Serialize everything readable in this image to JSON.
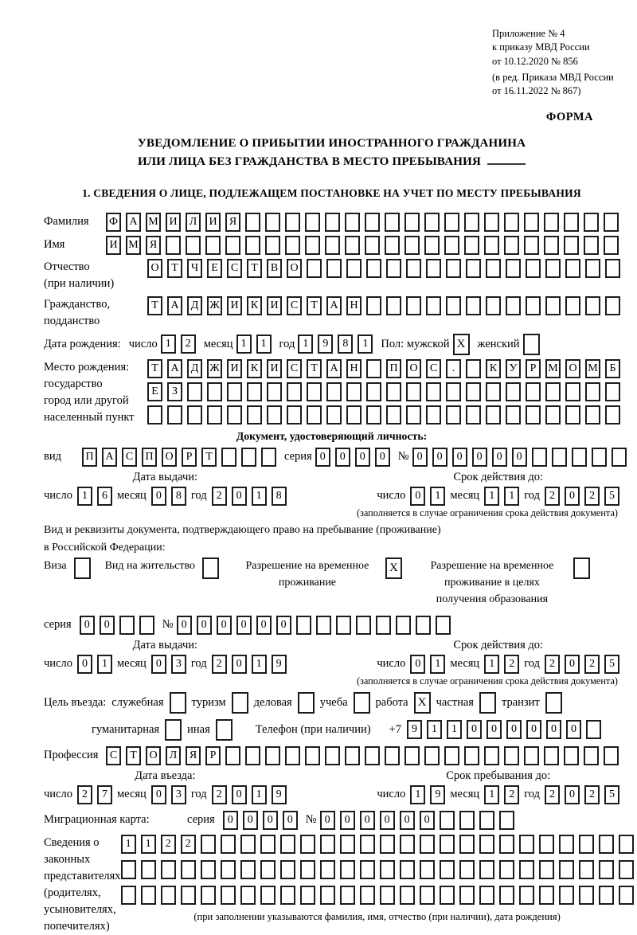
{
  "header": {
    "line1": "Приложение № 4",
    "line2": "к приказу МВД России",
    "line3": "от 10.12.2020 № 856",
    "line4": "(в ред. Приказа МВД России",
    "line5": "от 16.11.2022 № 867)",
    "forma": "ФОРМА"
  },
  "title": {
    "line1": "УВЕДОМЛЕНИЕ О ПРИБЫТИИ ИНОСТРАННОГО ГРАЖДАНИНА",
    "line2": "ИЛИ ЛИЦА БЕЗ ГРАЖДАНСТВА В МЕСТО ПРЕБЫВАНИЯ"
  },
  "section1_heading": "1. СВЕДЕНИЯ О ЛИЦЕ, ПОДЛЕЖАЩЕМ ПОСТАНОВКЕ НА УЧЕТ ПО МЕСТУ ПРЕБЫВАНИЯ",
  "labels": {
    "day": "число",
    "month": "месяц",
    "year": "год",
    "series": "серия",
    "number": "№",
    "issue_date": "Дата выдачи:",
    "valid_until": "Срок действия до:",
    "validity_note": "(заполняется в случае ограничения срока действия документа)",
    "entry_date": "Дата въезда:",
    "stay_until": "Срок пребывания до:"
  },
  "fields": {
    "surname": {
      "label": "Фамилия",
      "cells": {
        "value": "ФАМИЛИЯ",
        "len": 26
      }
    },
    "name": {
      "label": "Имя",
      "cells": {
        "value": "ИМЯ",
        "len": 26
      }
    },
    "patronymic": {
      "label": "Отчество",
      "label2": "(при наличии)",
      "cells": {
        "value": "ОТЧЕСТВО",
        "len": 24
      }
    },
    "citizenship": {
      "label": "Гражданство,",
      "label2": "подданство",
      "cells": {
        "value": "ТАДЖИКИСТАН",
        "len": 24
      }
    },
    "birth_date": {
      "label": "Дата рождения:",
      "day": {
        "value": "12",
        "len": 2
      },
      "month": {
        "value": "11",
        "len": 2
      },
      "year": {
        "value": "1981",
        "len": 4
      },
      "sex_label": "Пол: мужской",
      "male_checked": "X",
      "female_label": "женский",
      "female_checked": ""
    },
    "birth_place": {
      "label1": "Место рождения:",
      "label2": "государство",
      "label3": "город или другой",
      "label4": "населенный пункт",
      "row1": {
        "value": "ТАДЖИКИСТАН ПОС. КУРМОМБ",
        "len": 24
      },
      "row2": {
        "value": "ЕЗ",
        "len": 24
      },
      "row3": {
        "value": "",
        "len": 24
      }
    },
    "identity_doc": {
      "heading": "Документ, удостоверяющий личность:",
      "type_label": "вид",
      "type_cells": {
        "value": "ПАСПОРТ",
        "len": 10
      },
      "series_cells": {
        "value": "0000",
        "len": 4
      },
      "number_cells": {
        "value": "000000",
        "len": 11
      },
      "issue": {
        "day": {
          "value": "16",
          "len": 2
        },
        "month": {
          "value": "08",
          "len": 2
        },
        "year": {
          "value": "2018",
          "len": 4
        }
      },
      "expiry": {
        "day": {
          "value": "01",
          "len": 2
        },
        "month": {
          "value": "11",
          "len": 2
        },
        "year": {
          "value": "2025",
          "len": 4
        }
      }
    },
    "residence_doc": {
      "line1": "Вид и реквизиты документа, подтверждающего право на пребывание (проживание)",
      "line2": "в Российской Федерации:",
      "options": [
        {
          "label": "Виза",
          "checked": ""
        },
        {
          "label": "Вид на жительство",
          "checked": ""
        },
        {
          "label": "Разрешение на временное проживание",
          "checked": "X"
        },
        {
          "label": "Разрешение на временное проживание в целях получения образования",
          "checked": ""
        }
      ],
      "series_cells": {
        "value": "00",
        "len": 4
      },
      "number_cells": {
        "value": "000000",
        "len": 14
      },
      "issue": {
        "day": {
          "value": "01",
          "len": 2
        },
        "month": {
          "value": "03",
          "len": 2
        },
        "year": {
          "value": "2019",
          "len": 4
        }
      },
      "expiry": {
        "day": {
          "value": "01",
          "len": 2
        },
        "month": {
          "value": "12",
          "len": 2
        },
        "year": {
          "value": "2025",
          "len": 4
        }
      }
    },
    "visit_purpose": {
      "label": "Цель въезда:",
      "options": [
        {
          "label": "служебная",
          "checked": ""
        },
        {
          "label": "туризм",
          "checked": ""
        },
        {
          "label": "деловая",
          "checked": ""
        },
        {
          "label": "учеба",
          "checked": ""
        },
        {
          "label": "работа",
          "checked": "X"
        },
        {
          "label": "частная",
          "checked": ""
        },
        {
          "label": "транзит",
          "checked": ""
        }
      ],
      "options2": [
        {
          "label": "гуманитарная",
          "checked": ""
        },
        {
          "label": "иная",
          "checked": ""
        }
      ],
      "phone_label": "Телефон (при наличии)",
      "phone_prefix": "+7",
      "phone_cells": {
        "value": "911000000",
        "len": 10
      }
    },
    "profession": {
      "label": "Профессия",
      "cells": {
        "value": "СТОЛЯР",
        "len": 26
      }
    },
    "entry": {
      "day": {
        "value": "27",
        "len": 2
      },
      "month": {
        "value": "03",
        "len": 2
      },
      "year": {
        "value": "2019",
        "len": 4
      }
    },
    "stay": {
      "day": {
        "value": "19",
        "len": 2
      },
      "month": {
        "value": "12",
        "len": 2
      },
      "year": {
        "value": "2025",
        "len": 4
      }
    },
    "migration_card": {
      "label": "Миграционная карта:",
      "series_cells": {
        "value": "0000",
        "len": 4
      },
      "number_cells": {
        "value": "000000",
        "len": 10
      }
    },
    "legal_reps": {
      "label1": "Сведения о",
      "label2": "законных",
      "label3": "представителях",
      "label4": "(родителях,",
      "label5": "усыновителях,",
      "label6": "попечителях)",
      "row1": {
        "value": "1122",
        "len": 26
      },
      "row2": {
        "value": "",
        "len": 26
      },
      "row3": {
        "value": "",
        "len": 26
      },
      "note": "(при заполнении указываются фамилия, имя, отчество (при наличии), дата рождения)"
    }
  }
}
